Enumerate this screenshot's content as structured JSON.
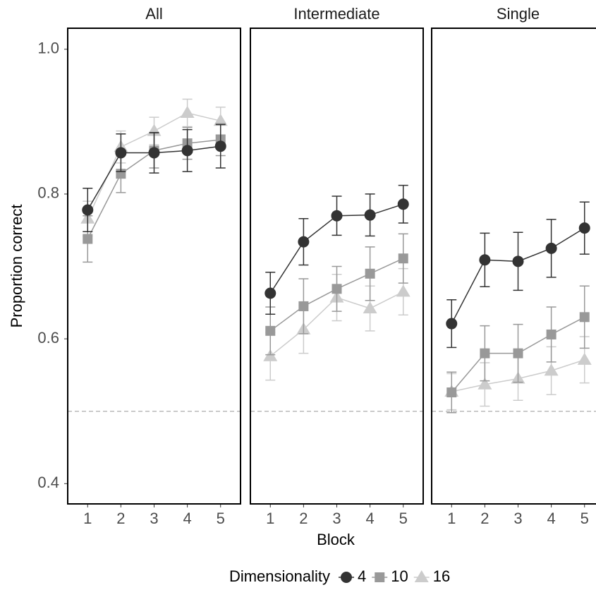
{
  "ylabel": "Proportion correct",
  "xlabel": "Block",
  "legend_title": "Dimensionality",
  "chart_data": [
    {
      "type": "line",
      "title": "All",
      "x": [
        1,
        2,
        3,
        4,
        5
      ],
      "xlim": [
        0.4,
        5.6
      ],
      "xticks": [
        1,
        2,
        3,
        4,
        5
      ],
      "ylim": [
        0.372,
        1.029
      ],
      "yticks": [
        0.4,
        0.6,
        0.8,
        {
          "value": 1.0,
          "label": "1.0"
        }
      ],
      "hline": 0.5,
      "series": [
        {
          "name": "4",
          "color": "#333333",
          "marker": "circle",
          "values": [
            0.778,
            0.857,
            0.857,
            0.86,
            0.866
          ],
          "errors": [
            0.03,
            0.026,
            0.028,
            0.029,
            0.03
          ]
        },
        {
          "name": "10",
          "color": "#999999",
          "marker": "square",
          "values": [
            0.738,
            0.828,
            0.86,
            0.87,
            0.875
          ],
          "errors": [
            0.032,
            0.026,
            0.024,
            0.022,
            0.022
          ]
        },
        {
          "name": "16",
          "color": "#cccccc",
          "marker": "triangle",
          "values": [
            0.766,
            0.865,
            0.887,
            0.912,
            0.901
          ],
          "errors": [
            0.024,
            0.022,
            0.019,
            0.019,
            0.019
          ]
        }
      ]
    },
    {
      "type": "line",
      "title": "Intermediate",
      "x": [
        1,
        2,
        3,
        4,
        5
      ],
      "xlim": [
        0.4,
        5.6
      ],
      "xticks": [
        1,
        2,
        3,
        4,
        5
      ],
      "hline": 0.5,
      "series": [
        {
          "name": "4",
          "color": "#333333",
          "marker": "circle",
          "values": [
            0.663,
            0.734,
            0.77,
            0.771,
            0.786
          ],
          "errors": [
            0.029,
            0.032,
            0.027,
            0.029,
            0.026
          ]
        },
        {
          "name": "10",
          "color": "#999999",
          "marker": "square",
          "values": [
            0.611,
            0.645,
            0.669,
            0.69,
            0.711
          ],
          "errors": [
            0.033,
            0.038,
            0.031,
            0.037,
            0.034
          ]
        },
        {
          "name": "16",
          "color": "#cccccc",
          "marker": "triangle",
          "values": [
            0.576,
            0.613,
            0.657,
            0.642,
            0.665
          ],
          "errors": [
            0.033,
            0.033,
            0.032,
            0.031,
            0.032
          ]
        }
      ]
    },
    {
      "type": "line",
      "title": "Single",
      "x": [
        1,
        2,
        3,
        4,
        5
      ],
      "xlim": [
        0.4,
        5.6
      ],
      "xticks": [
        1,
        2,
        3,
        4,
        5
      ],
      "hline": 0.5,
      "series": [
        {
          "name": "4",
          "color": "#333333",
          "marker": "circle",
          "values": [
            0.621,
            0.709,
            0.707,
            0.725,
            0.753
          ],
          "errors": [
            0.033,
            0.037,
            0.04,
            0.04,
            0.036
          ]
        },
        {
          "name": "10",
          "color": "#999999",
          "marker": "square",
          "values": [
            0.526,
            0.58,
            0.58,
            0.606,
            0.63
          ],
          "errors": [
            0.028,
            0.038,
            0.04,
            0.038,
            0.043
          ]
        },
        {
          "name": "16",
          "color": "#cccccc",
          "marker": "triangle",
          "values": [
            0.527,
            0.537,
            0.545,
            0.556,
            0.571
          ],
          "errors": [
            0.025,
            0.03,
            0.03,
            0.033,
            0.032
          ]
        }
      ]
    }
  ]
}
